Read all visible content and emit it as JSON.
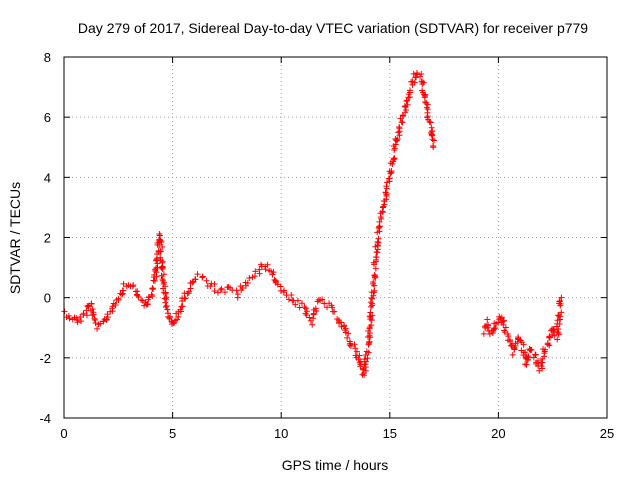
{
  "chart_data": {
    "type": "scatter",
    "title": "Day 279 of 2017, Sidereal Day-to-day VTEC variation (SDTVAR) for receiver p779",
    "xlabel": "GPS time / hours",
    "ylabel": "SDTVAR / TECUs",
    "xlim": [
      0,
      25
    ],
    "ylim": [
      -4,
      8
    ],
    "xticks": [
      0,
      5,
      10,
      15,
      20,
      25
    ],
    "yticks": [
      -4,
      -2,
      0,
      2,
      4,
      6,
      8
    ],
    "xtick_labels": [
      "0",
      "5",
      "10",
      "15",
      "20",
      "25"
    ],
    "ytick_labels": [
      "-4",
      "-2",
      "0",
      "2",
      "4",
      "6",
      "8"
    ],
    "grid": true,
    "marker": "+",
    "color": "#ff0000",
    "series": [
      {
        "name": "SDTVAR",
        "segments": [
          {
            "x": [
              0.0,
              0.3,
              0.6,
              1.0,
              1.2,
              1.4,
              1.6,
              1.8,
              2.0,
              2.2,
              2.4,
              2.6,
              2.8,
              3.0,
              3.2,
              3.4,
              3.6,
              3.8,
              4.0,
              4.2,
              4.4,
              4.5,
              4.6,
              4.7,
              4.8,
              4.9,
              5.0,
              5.2,
              5.4,
              5.6,
              5.8,
              6.0,
              6.2,
              6.4,
              6.6,
              6.8,
              7.0,
              7.2,
              7.4,
              7.6,
              7.8,
              8.0,
              8.2,
              8.4,
              8.6,
              8.8,
              9.0,
              9.2,
              9.4,
              9.6,
              9.8,
              10.0,
              10.2,
              10.4,
              10.6,
              10.8,
              11.0,
              11.2,
              11.4,
              11.6,
              11.8,
              12.0,
              12.2,
              12.4,
              12.6,
              12.8,
              13.0,
              13.2,
              13.4,
              13.6,
              13.8,
              14.0,
              14.2,
              14.4,
              14.6,
              14.8,
              15.0,
              15.2,
              15.4,
              15.6,
              15.8,
              16.0,
              16.2,
              16.4,
              16.6,
              16.8,
              17.0
            ],
            "y": [
              -0.5,
              -0.6,
              -0.8,
              -0.5,
              -0.2,
              -0.8,
              -1.0,
              -0.9,
              -0.6,
              -0.4,
              -0.1,
              0.1,
              0.4,
              0.5,
              0.4,
              0.1,
              -0.1,
              -0.3,
              0.1,
              0.6,
              2.1,
              1.2,
              0.4,
              -0.2,
              -0.5,
              -0.8,
              -0.9,
              -0.6,
              -0.3,
              0.1,
              0.4,
              0.6,
              0.7,
              0.6,
              0.5,
              0.4,
              0.3,
              0.2,
              0.2,
              0.3,
              0.2,
              0.1,
              0.3,
              0.5,
              0.6,
              0.7,
              0.9,
              1.1,
              1.0,
              0.8,
              0.5,
              0.3,
              0.1,
              0.0,
              -0.1,
              -0.2,
              -0.3,
              -0.6,
              -0.8,
              -0.3,
              -0.1,
              -0.2,
              -0.3,
              -0.5,
              -0.6,
              -0.9,
              -1.2,
              -1.5,
              -1.7,
              -2.1,
              -2.6,
              -1.5,
              0.0,
              1.8,
              2.6,
              3.3,
              4.0,
              4.8,
              5.4,
              6.0,
              6.5,
              7.0,
              7.5,
              7.4,
              6.8,
              6.0,
              5.0
            ]
          },
          {
            "x": [
              19.3,
              19.5,
              19.7,
              19.9,
              20.1,
              20.3,
              20.5,
              20.7,
              20.9,
              21.1,
              21.3,
              21.5,
              21.7,
              21.9,
              22.1,
              22.3,
              22.5,
              22.7,
              22.9
            ],
            "y": [
              -1.1,
              -0.8,
              -1.2,
              -0.9,
              -0.6,
              -1.0,
              -1.4,
              -1.8,
              -1.3,
              -1.6,
              -2.2,
              -1.7,
              -2.0,
              -2.4,
              -1.8,
              -1.5,
              -1.0,
              -1.3,
              0.0
            ]
          }
        ]
      }
    ]
  }
}
